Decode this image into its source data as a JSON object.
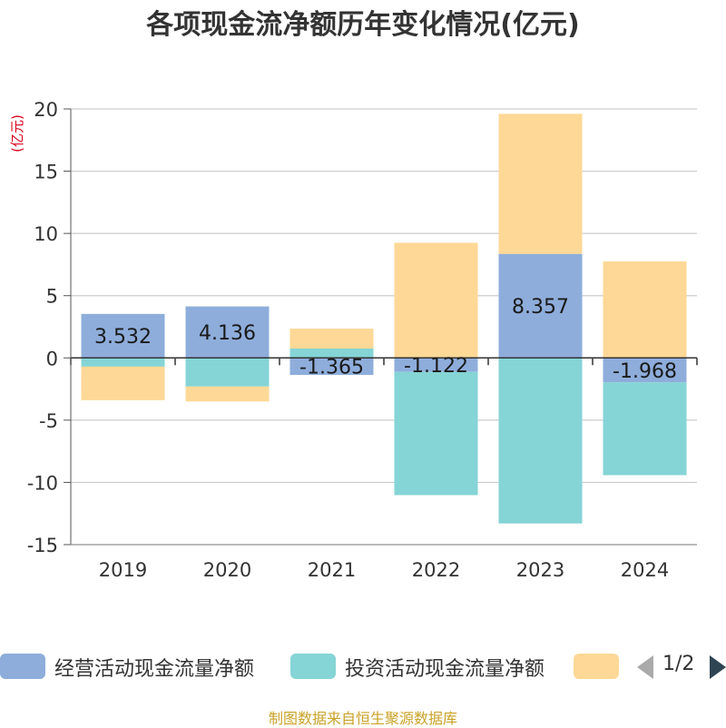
{
  "chart_data": {
    "type": "bar",
    "stacked": true,
    "title": "各项现金流净额历年变化情况(亿元)",
    "unit_label": "(亿元)",
    "categories": [
      "2019",
      "2020",
      "2021",
      "2022",
      "2023",
      "2024"
    ],
    "ylim": [
      -15,
      20
    ],
    "yticks": [
      20,
      15,
      10,
      5,
      0,
      -5,
      -10,
      -15
    ],
    "grid": true,
    "legend_position": "bottom",
    "series": [
      {
        "name": "经营活动现金流量净额",
        "color": "#8eaddb",
        "values": [
          3.532,
          4.136,
          -1.365,
          -1.122,
          8.357,
          -1.968
        ],
        "labels": [
          "3.532",
          "4.136",
          "-1.365",
          "-1.122",
          "8.357",
          "-1.968"
        ]
      },
      {
        "name": "投资活动现金流量净额",
        "color": "#85d4d6",
        "values": [
          -0.7,
          -2.3,
          0.75,
          -9.9,
          -13.3,
          -7.45
        ]
      },
      {
        "name": "",
        "color": "#fed896",
        "values": [
          -2.7,
          -1.2,
          1.6,
          9.25,
          11.25,
          7.75
        ]
      }
    ]
  },
  "legend": {
    "page_indicator": "1/2"
  },
  "source": "制图数据来自恒生聚源数据库"
}
